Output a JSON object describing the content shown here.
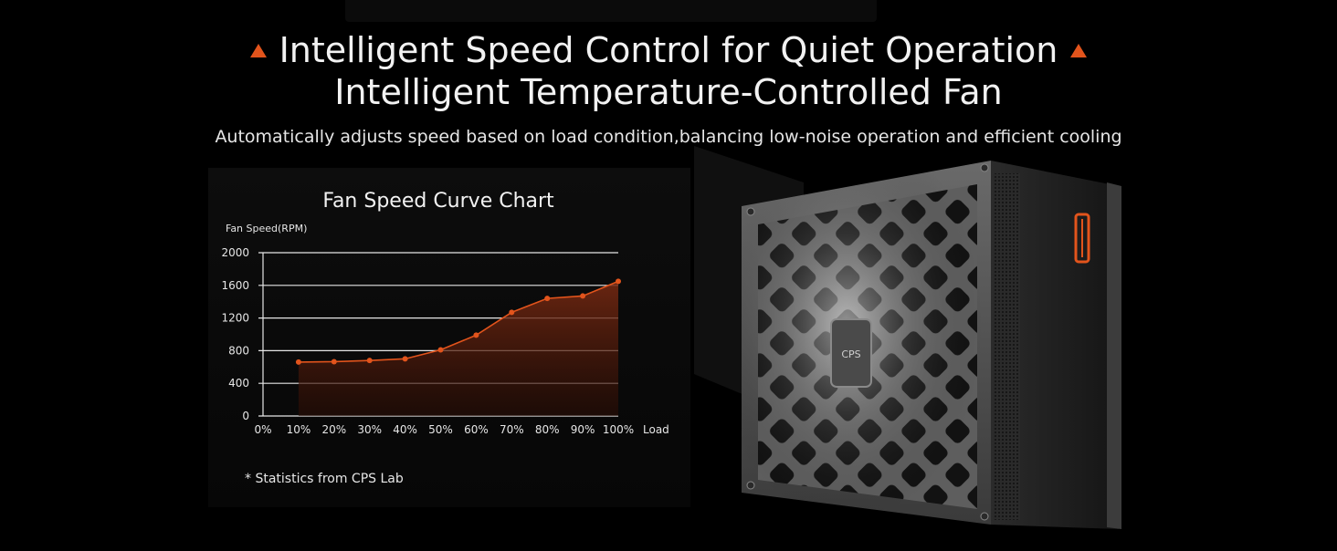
{
  "header": {
    "headline": "Intelligent Speed Control for Quiet Operation",
    "subheadline": "Intelligent Temperature-Controlled Fan",
    "description": "Automatically adjusts speed based on load condition,balancing low-noise operation and efficient cooling"
  },
  "colors": {
    "accent": "#e2541c",
    "background": "#000000",
    "text": "#f2f2f2"
  },
  "chart_data": {
    "type": "area",
    "title": "Fan Speed Curve Chart",
    "ylabel": "Fan Speed(RPM)",
    "xlabel": "Load",
    "x": [
      "0%",
      "10%",
      "20%",
      "30%",
      "40%",
      "50%",
      "60%",
      "70%",
      "80%",
      "90%",
      "100%"
    ],
    "y_ticks": [
      0,
      400,
      800,
      1200,
      1600,
      2000
    ],
    "ylim": [
      0,
      2000
    ],
    "grid": true,
    "series": [
      {
        "x": [
          10,
          20,
          30,
          40,
          50,
          60,
          70,
          80,
          90,
          100
        ],
        "values": [
          660,
          665,
          680,
          700,
          810,
          990,
          1270,
          1440,
          1470,
          1650
        ]
      }
    ],
    "line_color": "#e2541c"
  },
  "footnote": "* Statistics from CPS Lab",
  "product": {
    "logo_text": "CPS",
    "icon": "psu-product-image"
  }
}
